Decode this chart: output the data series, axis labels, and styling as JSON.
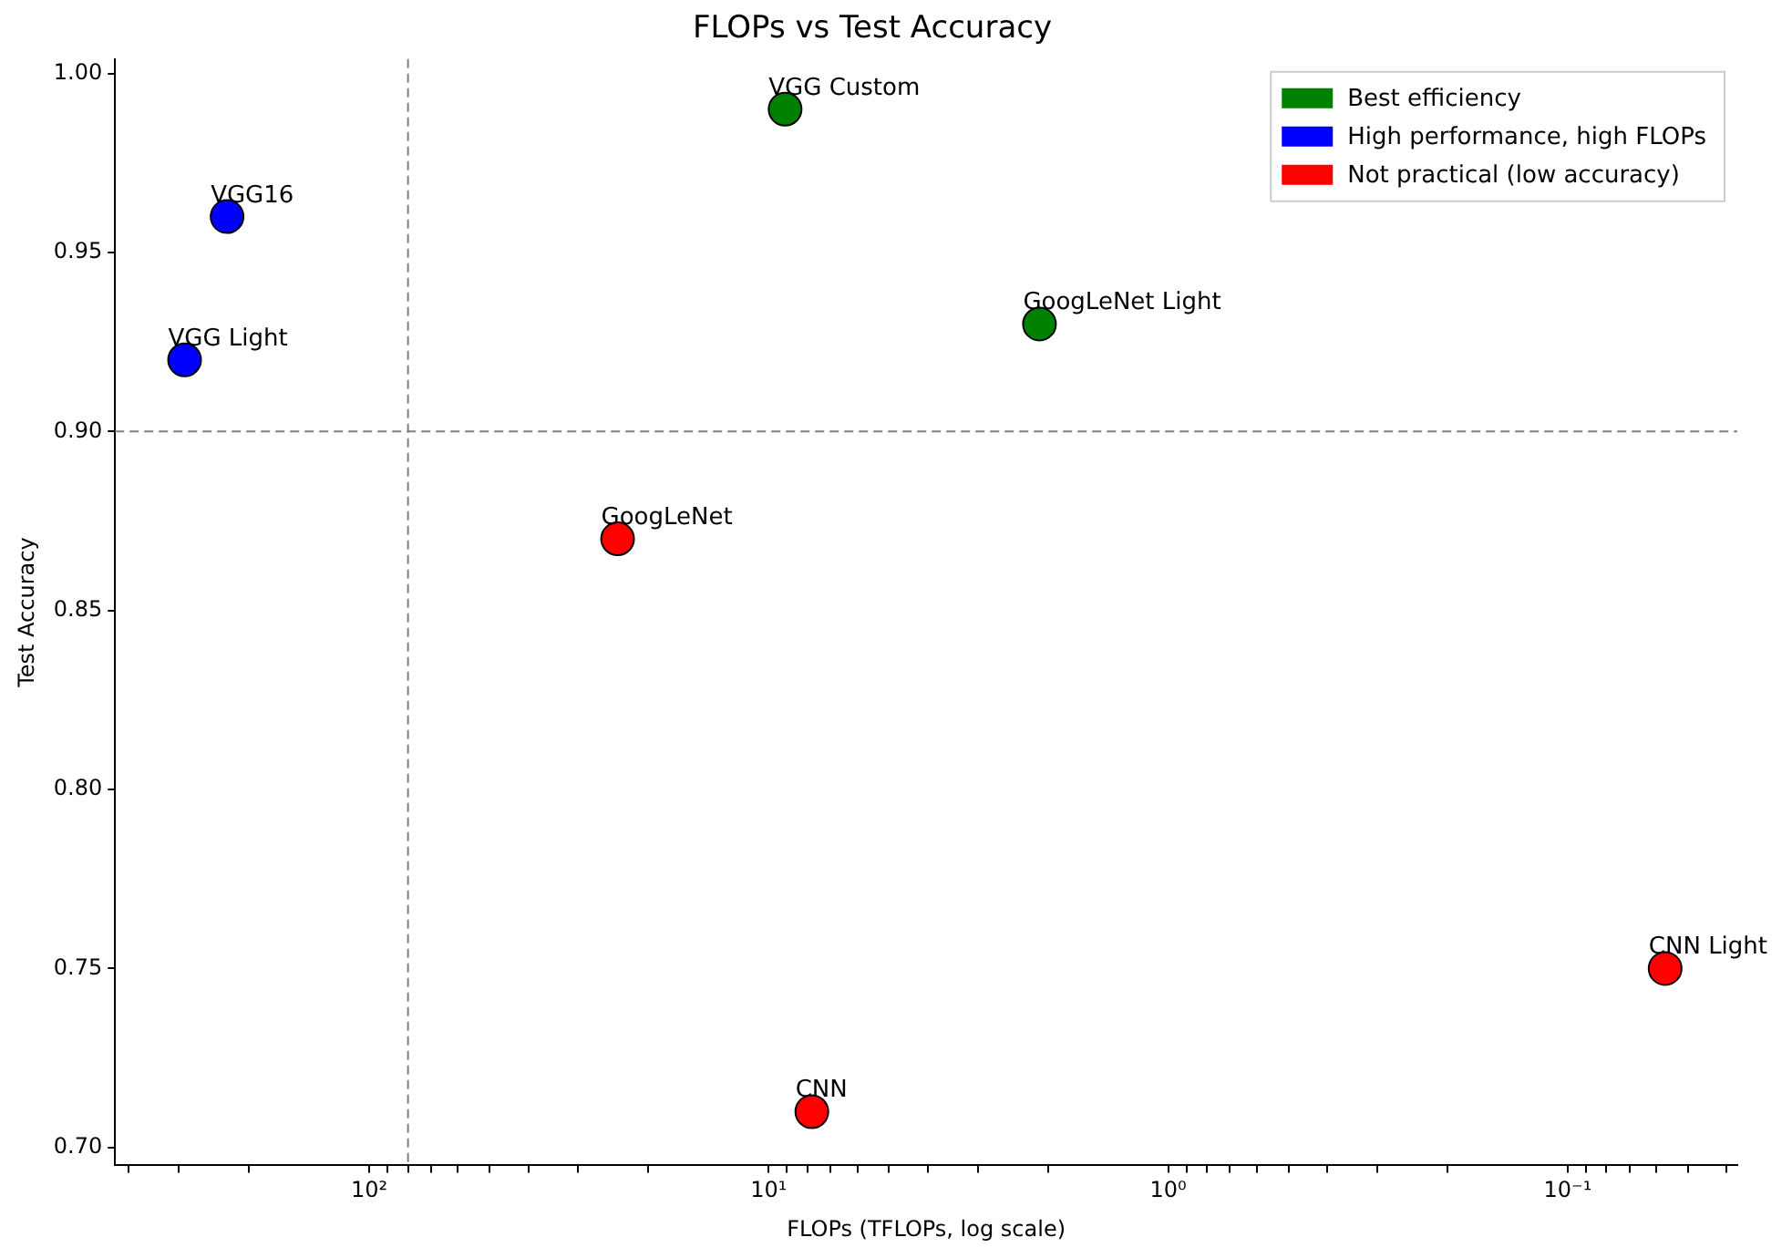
{
  "chart_data": {
    "type": "scatter",
    "title": "FLOPs vs Test Accuracy",
    "xlabel": "FLOPs (TFLOPs, log scale)",
    "ylabel": "Test Accuracy",
    "log": "x",
    "marker": "circle",
    "grid": false,
    "legend": "top right",
    "xlim": [
      433,
      0.0376
    ],
    "xticks": [
      {
        "value": 400,
        "label": null
      },
      {
        "value": 300,
        "label": null
      },
      {
        "value": 200,
        "label": null
      },
      {
        "value": 100,
        "label": "10²"
      },
      {
        "value": 90,
        "label": null
      },
      {
        "value": 80,
        "label": null
      },
      {
        "value": 70,
        "label": null
      },
      {
        "value": 60,
        "label": null
      },
      {
        "value": 50,
        "label": null
      },
      {
        "value": 40,
        "label": null
      },
      {
        "value": 30,
        "label": null
      },
      {
        "value": 20,
        "label": null
      },
      {
        "value": 10,
        "label": "10¹"
      },
      {
        "value": 9,
        "label": null
      },
      {
        "value": 8,
        "label": null
      },
      {
        "value": 7,
        "label": null
      },
      {
        "value": 6,
        "label": null
      },
      {
        "value": 5,
        "label": null
      },
      {
        "value": 4,
        "label": null
      },
      {
        "value": 3,
        "label": null
      },
      {
        "value": 2,
        "label": null
      },
      {
        "value": 1,
        "label": "10⁰"
      },
      {
        "value": 0.9,
        "label": null
      },
      {
        "value": 0.8,
        "label": null
      },
      {
        "value": 0.7,
        "label": null
      },
      {
        "value": 0.6,
        "label": null
      },
      {
        "value": 0.5,
        "label": null
      },
      {
        "value": 0.4,
        "label": null
      },
      {
        "value": 0.3,
        "label": null
      },
      {
        "value": 0.2,
        "label": null
      },
      {
        "value": 0.1,
        "label": "10⁻¹"
      },
      {
        "value": 0.09,
        "label": null
      },
      {
        "value": 0.08,
        "label": null
      },
      {
        "value": 0.07,
        "label": null
      },
      {
        "value": 0.06,
        "label": null
      },
      {
        "value": 0.05,
        "label": null
      },
      {
        "value": 0.04,
        "label": null
      }
    ],
    "ylim": [
      0.695,
      1.004
    ],
    "yticks": [
      {
        "value": 0.7,
        "label": "0.70"
      },
      {
        "value": 0.75,
        "label": "0.75"
      },
      {
        "value": 0.8,
        "label": "0.80"
      },
      {
        "value": 0.85,
        "label": "0.85"
      },
      {
        "value": 0.9,
        "label": "0.90"
      },
      {
        "value": 0.95,
        "label": "0.95"
      },
      {
        "value": 1,
        "label": "1.00"
      }
    ],
    "series": [
      {
        "name": "Best efficiency",
        "color": "#008000",
        "x": [
          9.1,
          2.1
        ],
        "values": [
          0.99,
          0.93
        ]
      },
      {
        "name": "High performance, high FLOPs",
        "color": "#0000ff",
        "x": [
          227,
          290
        ],
        "values": [
          0.96,
          0.92
        ]
      },
      {
        "name": "Not practical (low accuracy)",
        "color": "#ff0000",
        "x": [
          23.9,
          7.8,
          0.057
        ],
        "values": [
          0.87,
          0.71,
          0.75
        ]
      }
    ],
    "ref_lines": [
      {
        "axis": "x",
        "value": 80,
        "color": "#808080",
        "line_style": "dashed"
      },
      {
        "axis": "y",
        "value": 0.9,
        "color": "#808080",
        "line_style": "dashed"
      }
    ],
    "annotations": [
      {
        "text": "VGG Custom",
        "x": 9.1,
        "y": 0.99
      },
      {
        "text": "GoogLeNet Light",
        "x": 2.1,
        "y": 0.93
      },
      {
        "text": "VGG16",
        "x": 227,
        "y": 0.96
      },
      {
        "text": "VGG Light",
        "x": 290,
        "y": 0.92
      },
      {
        "text": "GoogLeNet",
        "x": 23.9,
        "y": 0.87
      },
      {
        "text": "CNN",
        "x": 7.8,
        "y": 0.71
      },
      {
        "text": "CNN Light",
        "x": 0.057,
        "y": 0.75
      }
    ]
  }
}
